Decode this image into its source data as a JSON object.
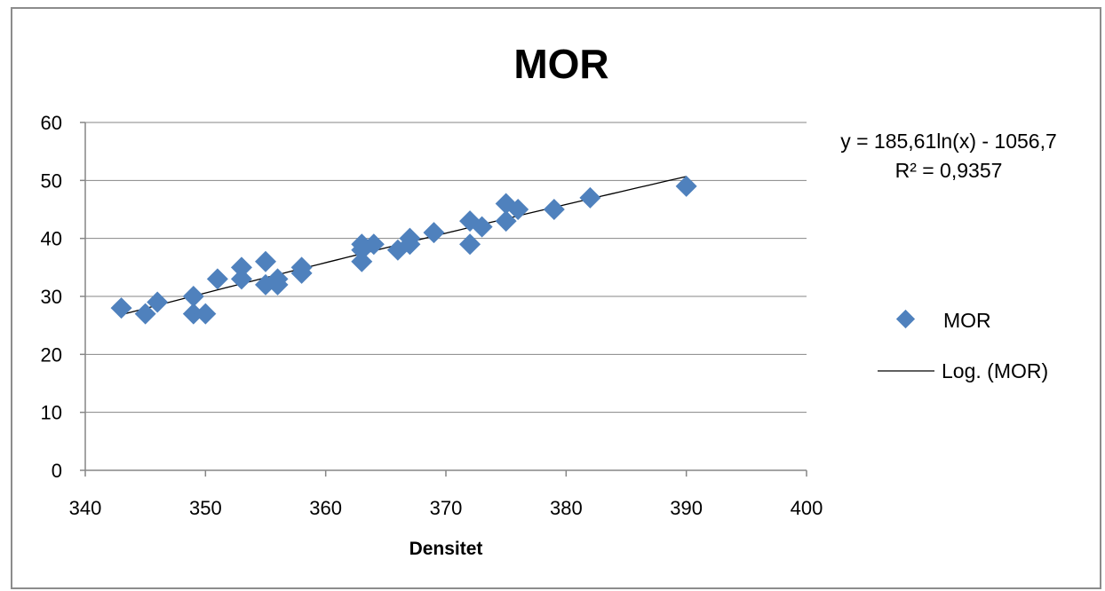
{
  "chart_data": {
    "type": "scatter",
    "title": "MOR",
    "xlabel": "Densitet",
    "ylabel": "",
    "xlim": [
      340,
      400
    ],
    "ylim": [
      0,
      60
    ],
    "xticks": [
      340,
      350,
      360,
      370,
      380,
      390,
      400
    ],
    "yticks": [
      0,
      10,
      20,
      30,
      40,
      50,
      60
    ],
    "grid": "horizontal",
    "legend_position": "right",
    "series": [
      {
        "name": "MOR",
        "marker": "diamond",
        "color": "#4f81bd",
        "points": [
          [
            343,
            28
          ],
          [
            345,
            27
          ],
          [
            346,
            29
          ],
          [
            349,
            30
          ],
          [
            349,
            27
          ],
          [
            350,
            27
          ],
          [
            351,
            33
          ],
          [
            353,
            35
          ],
          [
            353,
            33
          ],
          [
            355,
            36
          ],
          [
            355,
            32
          ],
          [
            356,
            33
          ],
          [
            356,
            32
          ],
          [
            358,
            35
          ],
          [
            358,
            34
          ],
          [
            363,
            39
          ],
          [
            363,
            38
          ],
          [
            363,
            36
          ],
          [
            364,
            39
          ],
          [
            366,
            38
          ],
          [
            367,
            40
          ],
          [
            367,
            39
          ],
          [
            369,
            41
          ],
          [
            372,
            43
          ],
          [
            372,
            39
          ],
          [
            373,
            42
          ],
          [
            375,
            46
          ],
          [
            375,
            43
          ],
          [
            376,
            45
          ],
          [
            379,
            45
          ],
          [
            382,
            47
          ],
          [
            390,
            49
          ]
        ]
      }
    ],
    "trendline": {
      "name": "Log. (MOR)",
      "type": "logarithmic",
      "a": 185.61,
      "b": -1056.7,
      "x_range": [
        343,
        390
      ],
      "color": "#000000",
      "equation_label": "y = 185,61ln(x) - 1056,7",
      "r2_label": "R² = 0,9357"
    }
  }
}
